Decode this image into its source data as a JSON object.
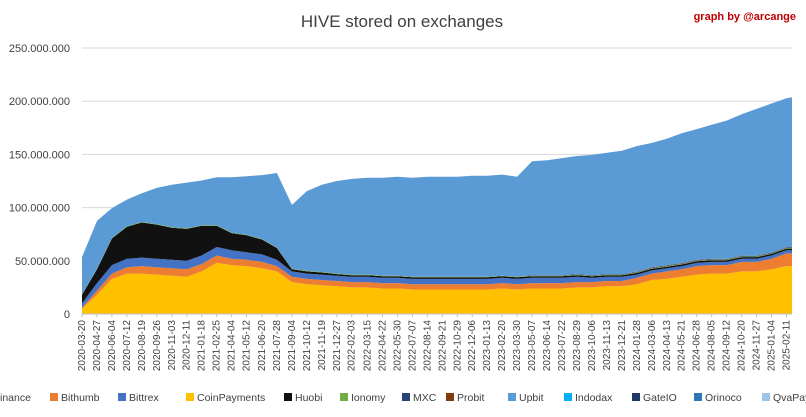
{
  "chart_data": {
    "type": "area",
    "stacked": true,
    "title": "HIVE stored on exchanges",
    "credit": "graph by @arcange",
    "xlabel": "",
    "ylabel": "",
    "ylim": [
      0,
      250000000
    ],
    "yticks": [
      0,
      50000000,
      100000000,
      150000000,
      200000000,
      250000000
    ],
    "ytick_labels": [
      "0",
      "50.000.000",
      "100.000.000",
      "150.000.000",
      "200.000.000",
      "250.000.000"
    ],
    "grid": true,
    "legend_position": "bottom",
    "x_tick_labels": [
      "2020-03-20",
      "2020-04-27",
      "2020-06-04",
      "2020-07-12",
      "2020-08-19",
      "2020-09-26",
      "2020-11-03",
      "2020-12-11",
      "2021-01-18",
      "2021-02-25",
      "2021-04-04",
      "2021-05-12",
      "2021-06-20",
      "2021-07-28",
      "2021-09-04",
      "2021-10-12",
      "2021-11-19",
      "2021-12-27",
      "2022-02-03",
      "2022-03-15",
      "2022-04-22",
      "2022-05-30",
      "2022-07-07",
      "2022-08-14",
      "2022-09-21",
      "2022-10-29",
      "2022-12-06",
      "2023-01-13",
      "2023-02-20",
      "2023-03-30",
      "2023-05-07",
      "2023-06-14",
      "2023-07-22",
      "2023-08-29",
      "2023-10-06",
      "2023-11-13",
      "2023-12-21",
      "2024-01-28",
      "2024-03-06",
      "2024-04-13",
      "2024-05-21",
      "2024-06-28",
      "2024-08-05",
      "2024-09-12",
      "2024-10-20",
      "2024-11-27",
      "2025-01-04",
      "2025-02-11"
    ],
    "x": [
      "2020-03-20",
      "2020-04-27",
      "2020-06-04",
      "2020-07-12",
      "2020-08-19",
      "2020-09-26",
      "2020-11-03",
      "2020-12-11",
      "2021-01-18",
      "2021-02-25",
      "2021-04-04",
      "2021-05-12",
      "2021-06-20",
      "2021-07-28",
      "2021-09-04",
      "2021-10-12",
      "2021-11-19",
      "2021-12-27",
      "2022-02-03",
      "2022-03-15",
      "2022-04-22",
      "2022-05-30",
      "2022-07-07",
      "2022-08-14",
      "2022-09-21",
      "2022-10-29",
      "2022-12-06",
      "2023-01-13",
      "2023-02-20",
      "2023-03-30",
      "2023-05-07",
      "2023-06-14",
      "2023-07-22",
      "2023-08-29",
      "2023-10-06",
      "2023-11-13",
      "2023-12-21",
      "2024-01-28",
      "2024-03-06",
      "2024-04-13",
      "2024-05-21",
      "2024-06-28",
      "2024-08-05",
      "2024-09-12",
      "2024-10-20",
      "2024-11-27",
      "2025-01-04",
      "2025-02-11",
      "2025-02-25"
    ],
    "series": [
      {
        "name": "Binance",
        "color": "#ffc000",
        "values": [
          5000000,
          18000000,
          33000000,
          38000000,
          38000000,
          37000000,
          36000000,
          35000000,
          40000000,
          48000000,
          46000000,
          45000000,
          43000000,
          40000000,
          30000000,
          28000000,
          27000000,
          26000000,
          25000000,
          25000000,
          24000000,
          24000000,
          23000000,
          23000000,
          23000000,
          23000000,
          23000000,
          23000000,
          24000000,
          23000000,
          24000000,
          24000000,
          24000000,
          25000000,
          25000000,
          26000000,
          26000000,
          28000000,
          32000000,
          33000000,
          35000000,
          37000000,
          38000000,
          38000000,
          40000000,
          40000000,
          42000000,
          45000000,
          45000000
        ]
      },
      {
        "name": "Bithumb",
        "color": "#ed7d31",
        "values": [
          1000000,
          4000000,
          5000000,
          6000000,
          7000000,
          7000000,
          7000000,
          7000000,
          7000000,
          7000000,
          6000000,
          6000000,
          6000000,
          5000000,
          5000000,
          5000000,
          5000000,
          5000000,
          5000000,
          5000000,
          5000000,
          5000000,
          5000000,
          5000000,
          5000000,
          5000000,
          5000000,
          5000000,
          5000000,
          5000000,
          5000000,
          5000000,
          5000000,
          5000000,
          5000000,
          5000000,
          5000000,
          6000000,
          6000000,
          7000000,
          7000000,
          8000000,
          8000000,
          8000000,
          9000000,
          9000000,
          10000000,
          12000000,
          12000000
        ]
      },
      {
        "name": "Bittrex",
        "color": "#4472c4",
        "values": [
          4000000,
          7000000,
          8000000,
          8000000,
          8000000,
          8000000,
          8000000,
          8000000,
          8000000,
          8000000,
          8000000,
          7000000,
          7000000,
          6000000,
          5000000,
          5000000,
          5000000,
          5000000,
          5000000,
          5000000,
          5000000,
          5000000,
          5000000,
          5000000,
          5000000,
          5000000,
          5000000,
          5000000,
          5000000,
          5000000,
          5000000,
          5000000,
          5000000,
          5000000,
          4000000,
          4000000,
          4000000,
          3000000,
          3000000,
          3000000,
          3000000,
          3000000,
          3000000,
          3000000,
          3000000,
          3000000,
          3000000,
          3000000,
          3000000
        ]
      },
      {
        "name": "CoinPayments",
        "color": "#ffc000",
        "values": [
          0,
          0,
          0,
          0,
          0,
          0,
          0,
          0,
          0,
          0,
          0,
          0,
          0,
          0,
          0,
          0,
          0,
          0,
          0,
          0,
          0,
          0,
          0,
          0,
          0,
          0,
          0,
          0,
          0,
          0,
          0,
          0,
          0,
          0,
          0,
          0,
          0,
          0,
          0,
          0,
          0,
          0,
          0,
          0,
          0,
          0,
          0,
          0,
          0
        ]
      },
      {
        "name": "Huobi",
        "color": "#111111",
        "values": [
          8000000,
          13000000,
          25000000,
          30000000,
          33000000,
          32000000,
          30000000,
          30000000,
          28000000,
          20000000,
          16000000,
          16000000,
          14000000,
          11000000,
          2000000,
          2000000,
          2000000,
          1500000,
          1500000,
          1500000,
          1500000,
          1500000,
          1500000,
          1500000,
          1500000,
          1500000,
          1500000,
          1500000,
          1500000,
          1500000,
          1500000,
          1500000,
          1500000,
          1500000,
          1500000,
          1500000,
          1500000,
          1500000,
          1500000,
          1500000,
          1500000,
          1500000,
          1500000,
          1500000,
          1500000,
          1500000,
          1500000,
          1500000,
          1500000
        ]
      },
      {
        "name": "Ionomy",
        "color": "#70ad47",
        "values": [
          500000,
          500000,
          500000,
          500000,
          500000,
          500000,
          500000,
          500000,
          500000,
          500000,
          500000,
          500000,
          500000,
          500000,
          500000,
          500000,
          500000,
          500000,
          500000,
          500000,
          500000,
          500000,
          500000,
          500000,
          500000,
          500000,
          500000,
          500000,
          500000,
          500000,
          500000,
          500000,
          500000,
          500000,
          500000,
          500000,
          500000,
          500000,
          500000,
          500000,
          500000,
          500000,
          500000,
          500000,
          500000,
          500000,
          500000,
          500000,
          500000
        ]
      },
      {
        "name": "MXC",
        "color": "#264478",
        "values": [
          0,
          0,
          0,
          0,
          0,
          0,
          0,
          0,
          0,
          0,
          0,
          0,
          0,
          0,
          0,
          0,
          0,
          0,
          0,
          0,
          0,
          0,
          0,
          0,
          0,
          0,
          0,
          0,
          0,
          0,
          500000,
          500000,
          500000,
          500000,
          500000,
          500000,
          500000,
          500000,
          500000,
          500000,
          500000,
          500000,
          500000,
          500000,
          500000,
          500000,
          500000,
          500000,
          500000
        ]
      },
      {
        "name": "Probit",
        "color": "#843c0c",
        "values": [
          0,
          0,
          0,
          0,
          0,
          0,
          0,
          0,
          0,
          0,
          0,
          0,
          0,
          0,
          0,
          0,
          0,
          0,
          0,
          0,
          0,
          0,
          0,
          0,
          0,
          0,
          0,
          0,
          0,
          0,
          0,
          0,
          0,
          0,
          0,
          0,
          0,
          300000,
          300000,
          300000,
          300000,
          300000,
          300000,
          300000,
          300000,
          300000,
          300000,
          300000,
          300000
        ]
      },
      {
        "name": "Upbit",
        "color": "#5b9bd5",
        "values": [
          35000000,
          45000000,
          28000000,
          25000000,
          27000000,
          34000000,
          40000000,
          43000000,
          42000000,
          45000000,
          52000000,
          55000000,
          60000000,
          70000000,
          60000000,
          75000000,
          82000000,
          87000000,
          90000000,
          91000000,
          92000000,
          93000000,
          93000000,
          94000000,
          94000000,
          94000000,
          95000000,
          95000000,
          95000000,
          94000000,
          107000000,
          108000000,
          110000000,
          111000000,
          113000000,
          114000000,
          116000000,
          118000000,
          117000000,
          119000000,
          122000000,
          123000000,
          126000000,
          130000000,
          133000000,
          138000000,
          140000000,
          140000000,
          141000000
        ]
      },
      {
        "name": "Indodax",
        "color": "#00b0f0",
        "values": [
          0,
          0,
          0,
          0,
          0,
          0,
          0,
          0,
          0,
          0,
          0,
          0,
          0,
          0,
          0,
          0,
          0,
          0,
          0,
          0,
          0,
          0,
          0,
          0,
          0,
          0,
          0,
          0,
          0,
          0,
          0,
          0,
          0,
          0,
          0,
          0,
          0,
          0,
          0,
          0,
          0,
          0,
          0,
          0,
          0,
          0,
          0,
          0,
          0
        ]
      },
      {
        "name": "GateIO",
        "color": "#1f3864",
        "values": [
          0,
          0,
          0,
          0,
          0,
          0,
          0,
          0,
          0,
          0,
          0,
          0,
          0,
          0,
          0,
          0,
          0,
          0,
          0,
          0,
          0,
          0,
          0,
          0,
          0,
          0,
          0,
          0,
          0,
          0,
          0,
          0,
          0,
          0,
          0,
          0,
          0,
          0,
          0,
          0,
          0,
          0,
          0,
          0,
          0,
          0,
          0,
          0,
          0
        ]
      },
      {
        "name": "Orinoco",
        "color": "#2e75b6",
        "values": [
          0,
          0,
          0,
          0,
          0,
          0,
          0,
          0,
          0,
          0,
          0,
          0,
          0,
          0,
          0,
          0,
          0,
          0,
          0,
          0,
          0,
          0,
          0,
          0,
          0,
          0,
          0,
          0,
          0,
          0,
          0,
          0,
          0,
          0,
          0,
          0,
          0,
          0,
          0,
          0,
          0,
          0,
          0,
          0,
          0,
          0,
          0,
          0,
          0
        ]
      },
      {
        "name": "QvaPay",
        "color": "#9dc3e6",
        "values": [
          0,
          0,
          0,
          0,
          0,
          0,
          0,
          0,
          0,
          0,
          0,
          0,
          0,
          0,
          0,
          0,
          0,
          0,
          0,
          0,
          0,
          0,
          0,
          0,
          0,
          0,
          0,
          0,
          0,
          0,
          0,
          0,
          0,
          0,
          0,
          0,
          0,
          0,
          0,
          0,
          0,
          0,
          0,
          0,
          0,
          0,
          0,
          0,
          0
        ]
      }
    ]
  }
}
